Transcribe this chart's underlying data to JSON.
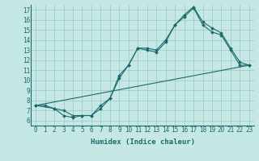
{
  "title": "",
  "xlabel": "Humidex (Indice chaleur)",
  "bg_color": "#c5e8e5",
  "grid_color": "#99c8c4",
  "line_color": "#1a6b6b",
  "xlim": [
    -0.5,
    23.5
  ],
  "ylim": [
    5.5,
    17.5
  ],
  "yticks": [
    6,
    7,
    8,
    9,
    10,
    11,
    12,
    13,
    14,
    15,
    16,
    17
  ],
  "xticks": [
    0,
    1,
    2,
    3,
    4,
    5,
    6,
    7,
    8,
    9,
    10,
    11,
    12,
    13,
    14,
    15,
    16,
    17,
    18,
    19,
    20,
    21,
    22,
    23
  ],
  "line1_x": [
    0,
    1,
    2,
    3,
    4,
    5,
    6,
    7,
    8,
    9,
    10,
    11,
    12,
    13,
    14,
    15,
    16,
    17,
    18,
    19,
    20,
    21,
    22,
    23
  ],
  "line1_y": [
    7.5,
    7.5,
    7.2,
    6.5,
    6.3,
    6.5,
    6.5,
    7.5,
    8.2,
    10.5,
    11.5,
    13.2,
    13.2,
    13.0,
    14.0,
    15.5,
    16.5,
    17.3,
    15.8,
    15.2,
    14.7,
    13.2,
    11.8,
    11.5
  ],
  "line2_x": [
    0,
    2,
    3,
    4,
    5,
    6,
    7,
    8,
    9,
    10,
    11,
    12,
    13,
    14,
    15,
    16,
    17,
    18,
    19,
    20,
    21,
    22,
    23
  ],
  "line2_y": [
    7.5,
    7.2,
    7.0,
    6.5,
    6.5,
    6.5,
    7.2,
    8.2,
    10.2,
    11.5,
    13.2,
    13.0,
    12.8,
    13.8,
    15.5,
    16.3,
    17.2,
    15.5,
    14.8,
    14.5,
    13.0,
    11.5,
    11.5
  ],
  "line3_x": [
    0,
    23
  ],
  "line3_y": [
    7.5,
    11.5
  ]
}
